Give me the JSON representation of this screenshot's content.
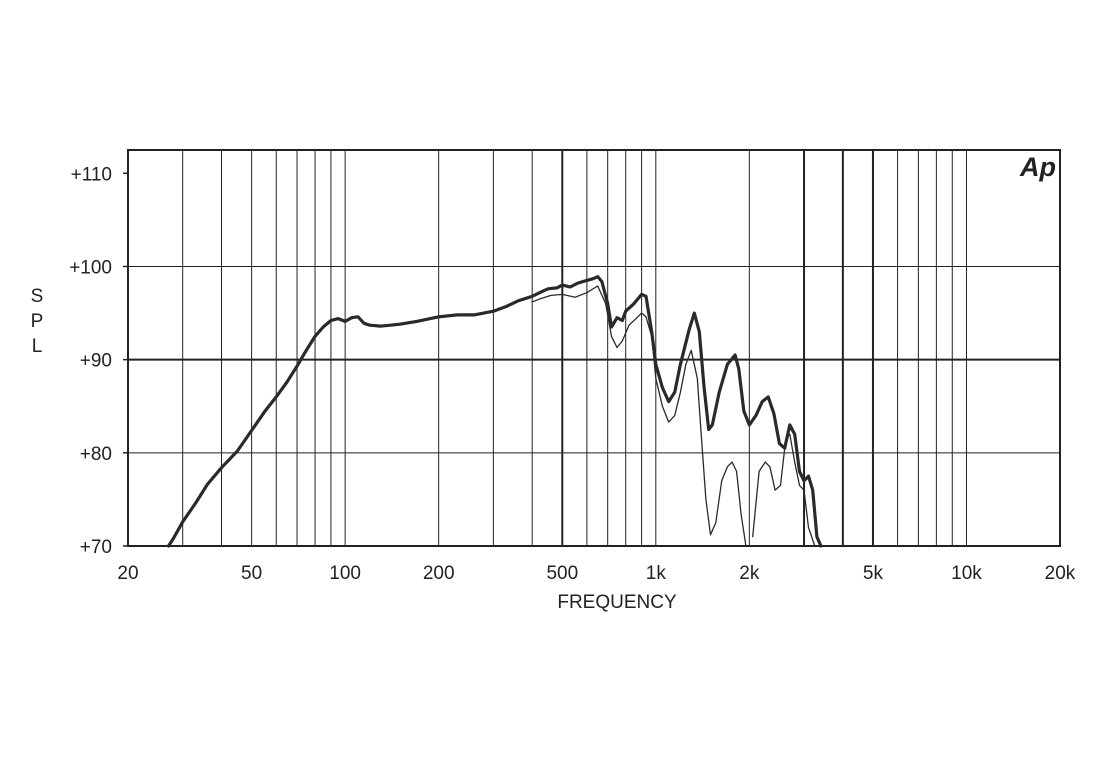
{
  "chart_data": {
    "type": "line",
    "title": "",
    "xlabel": "FREQUENCY",
    "ylabel": "S P L",
    "x_scale": "log",
    "xlim": [
      20,
      20000
    ],
    "ylim": [
      70,
      112.5
    ],
    "grid": true,
    "brand_mark": "Ap",
    "x_ticks": [
      {
        "value": 20,
        "label": "20"
      },
      {
        "value": 50,
        "label": "50"
      },
      {
        "value": 100,
        "label": "100"
      },
      {
        "value": 200,
        "label": "200"
      },
      {
        "value": 500,
        "label": "500"
      },
      {
        "value": 1000,
        "label": "1k"
      },
      {
        "value": 2000,
        "label": "2k"
      },
      {
        "value": 5000,
        "label": "5k"
      },
      {
        "value": 10000,
        "label": "10k"
      },
      {
        "value": 20000,
        "label": "20k"
      }
    ],
    "y_ticks": [
      {
        "value": 70,
        "label": "+70"
      },
      {
        "value": 80,
        "label": "+80"
      },
      {
        "value": 90,
        "label": "+90"
      },
      {
        "value": 100,
        "label": "+100"
      },
      {
        "value": 110,
        "label": "+110"
      }
    ],
    "series": [
      {
        "style": "thick",
        "color": "#2a2a2a",
        "points": [
          [
            27,
            70
          ],
          [
            28,
            70.8
          ],
          [
            30,
            72.6
          ],
          [
            33,
            74.6
          ],
          [
            36,
            76.6
          ],
          [
            40,
            78.4
          ],
          [
            45,
            80.2
          ],
          [
            50,
            82.4
          ],
          [
            55,
            84.4
          ],
          [
            60,
            86.0
          ],
          [
            65,
            87.6
          ],
          [
            70,
            89.3
          ],
          [
            75,
            91.0
          ],
          [
            80,
            92.5
          ],
          [
            85,
            93.5
          ],
          [
            90,
            94.2
          ],
          [
            95,
            94.4
          ],
          [
            100,
            94.1
          ],
          [
            105,
            94.5
          ],
          [
            110,
            94.6
          ],
          [
            115,
            93.9
          ],
          [
            120,
            93.7
          ],
          [
            130,
            93.6
          ],
          [
            140,
            93.7
          ],
          [
            150,
            93.8
          ],
          [
            170,
            94.1
          ],
          [
            200,
            94.6
          ],
          [
            230,
            94.8
          ],
          [
            260,
            94.8
          ],
          [
            300,
            95.2
          ],
          [
            330,
            95.7
          ],
          [
            360,
            96.3
          ],
          [
            400,
            96.8
          ],
          [
            430,
            97.3
          ],
          [
            450,
            97.6
          ],
          [
            480,
            97.7
          ],
          [
            500,
            98.0
          ],
          [
            530,
            97.8
          ],
          [
            560,
            98.2
          ],
          [
            600,
            98.5
          ],
          [
            630,
            98.7
          ],
          [
            650,
            98.9
          ],
          [
            670,
            98.4
          ],
          [
            700,
            96.0
          ],
          [
            720,
            93.5
          ],
          [
            750,
            94.5
          ],
          [
            780,
            94.2
          ],
          [
            800,
            95.2
          ],
          [
            850,
            96.0
          ],
          [
            900,
            97.0
          ],
          [
            930,
            96.8
          ],
          [
            970,
            93.0
          ],
          [
            1000,
            89.5
          ],
          [
            1050,
            87.0
          ],
          [
            1100,
            85.5
          ],
          [
            1150,
            86.5
          ],
          [
            1200,
            89.5
          ],
          [
            1280,
            93.2
          ],
          [
            1330,
            95.0
          ],
          [
            1380,
            93.0
          ],
          [
            1430,
            87.0
          ],
          [
            1480,
            82.5
          ],
          [
            1520,
            83.0
          ],
          [
            1600,
            86.5
          ],
          [
            1700,
            89.5
          ],
          [
            1800,
            90.5
          ],
          [
            1850,
            89.0
          ],
          [
            1920,
            84.5
          ],
          [
            2000,
            83.0
          ],
          [
            2100,
            84.0
          ],
          [
            2200,
            85.5
          ],
          [
            2300,
            86.0
          ],
          [
            2400,
            84.2
          ],
          [
            2500,
            81.0
          ],
          [
            2600,
            80.5
          ],
          [
            2700,
            83.0
          ],
          [
            2800,
            82.0
          ],
          [
            2900,
            78.0
          ],
          [
            3000,
            77.0
          ],
          [
            3100,
            77.5
          ],
          [
            3200,
            76.0
          ],
          [
            3300,
            71.0
          ],
          [
            3400,
            70
          ]
        ]
      },
      {
        "style": "thin",
        "color": "#2a2a2a",
        "points": [
          [
            400,
            96.2
          ],
          [
            430,
            96.6
          ],
          [
            460,
            96.9
          ],
          [
            500,
            97.0
          ],
          [
            550,
            96.7
          ],
          [
            600,
            97.2
          ],
          [
            650,
            97.9
          ],
          [
            690,
            96.0
          ],
          [
            720,
            92.5
          ],
          [
            750,
            91.3
          ],
          [
            780,
            92.0
          ],
          [
            820,
            93.7
          ],
          [
            870,
            94.5
          ],
          [
            900,
            95.0
          ],
          [
            930,
            94.6
          ],
          [
            970,
            92.5
          ],
          [
            1000,
            88.0
          ],
          [
            1050,
            85.0
          ],
          [
            1100,
            83.3
          ],
          [
            1150,
            84.0
          ],
          [
            1200,
            86.5
          ],
          [
            1250,
            89.5
          ],
          [
            1300,
            91.0
          ],
          [
            1360,
            88.0
          ],
          [
            1400,
            82.0
          ],
          [
            1450,
            75.0
          ],
          [
            1500,
            71.2
          ],
          [
            1560,
            72.5
          ],
          [
            1630,
            77.0
          ],
          [
            1700,
            78.5
          ],
          [
            1760,
            79.0
          ],
          [
            1820,
            78.0
          ],
          [
            1880,
            73.5
          ],
          [
            1950,
            70
          ]
        ]
      },
      {
        "style": "thin-tail",
        "color": "#2a2a2a",
        "points": [
          [
            2050,
            71.0
          ],
          [
            2150,
            78.0
          ],
          [
            2250,
            79.0
          ],
          [
            2330,
            78.5
          ],
          [
            2420,
            76.0
          ],
          [
            2520,
            76.5
          ],
          [
            2620,
            81.5
          ],
          [
            2700,
            82.0
          ],
          [
            2800,
            79.0
          ],
          [
            2900,
            76.5
          ],
          [
            3000,
            76.0
          ],
          [
            3100,
            72.0
          ],
          [
            3250,
            70
          ]
        ]
      }
    ]
  }
}
